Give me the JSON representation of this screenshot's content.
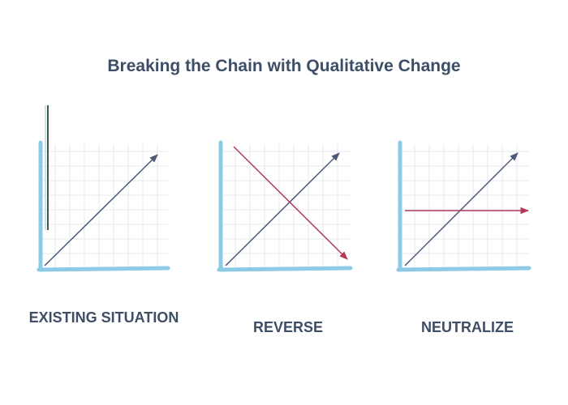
{
  "title": "Breaking the Chain with Qualitative Change",
  "panels": [
    {
      "label": "EXISTING SITUATION",
      "lines": [
        "diagonal-up"
      ]
    },
    {
      "label": "REVERSE",
      "lines": [
        "diagonal-up",
        "diagonal-down"
      ]
    },
    {
      "label": "NEUTRALIZE",
      "lines": [
        "diagonal-up",
        "horizontal"
      ]
    }
  ],
  "colors": {
    "title_text": "#3d4e66",
    "axis": "#8ccbe6",
    "grid": "#e6e9ee",
    "trend_line": "#4a5a78",
    "counter_line": "#b03a5a"
  }
}
